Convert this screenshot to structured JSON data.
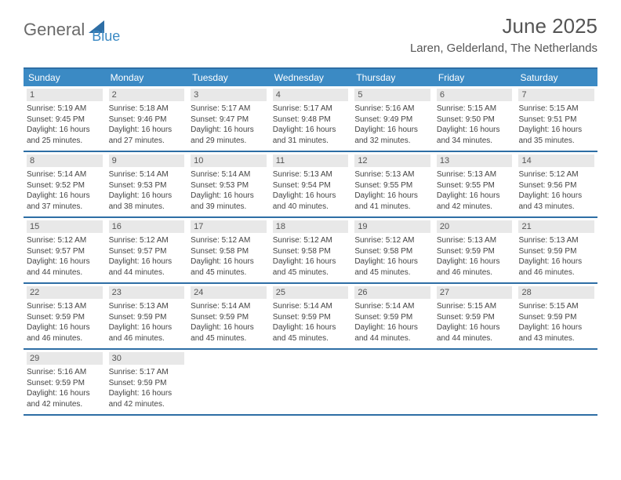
{
  "brand": {
    "text_part1": "General",
    "text_part2": "Blue",
    "color_gray": "#6a6a6a",
    "color_blue": "#3b8ac4",
    "logo_fill": "#2e6ea5"
  },
  "header": {
    "month_title": "June 2025",
    "location": "Laren, Gelderland, The Netherlands"
  },
  "colors": {
    "header_bg": "#3b8ac4",
    "border": "#2e6ea5",
    "daynum_bg": "#e8e8e8",
    "text": "#444444",
    "background": "#ffffff"
  },
  "calendar": {
    "day_names": [
      "Sunday",
      "Monday",
      "Tuesday",
      "Wednesday",
      "Thursday",
      "Friday",
      "Saturday"
    ],
    "weeks": [
      [
        {
          "num": "1",
          "sunrise": "Sunrise: 5:19 AM",
          "sunset": "Sunset: 9:45 PM",
          "daylight": "Daylight: 16 hours and 25 minutes."
        },
        {
          "num": "2",
          "sunrise": "Sunrise: 5:18 AM",
          "sunset": "Sunset: 9:46 PM",
          "daylight": "Daylight: 16 hours and 27 minutes."
        },
        {
          "num": "3",
          "sunrise": "Sunrise: 5:17 AM",
          "sunset": "Sunset: 9:47 PM",
          "daylight": "Daylight: 16 hours and 29 minutes."
        },
        {
          "num": "4",
          "sunrise": "Sunrise: 5:17 AM",
          "sunset": "Sunset: 9:48 PM",
          "daylight": "Daylight: 16 hours and 31 minutes."
        },
        {
          "num": "5",
          "sunrise": "Sunrise: 5:16 AM",
          "sunset": "Sunset: 9:49 PM",
          "daylight": "Daylight: 16 hours and 32 minutes."
        },
        {
          "num": "6",
          "sunrise": "Sunrise: 5:15 AM",
          "sunset": "Sunset: 9:50 PM",
          "daylight": "Daylight: 16 hours and 34 minutes."
        },
        {
          "num": "7",
          "sunrise": "Sunrise: 5:15 AM",
          "sunset": "Sunset: 9:51 PM",
          "daylight": "Daylight: 16 hours and 35 minutes."
        }
      ],
      [
        {
          "num": "8",
          "sunrise": "Sunrise: 5:14 AM",
          "sunset": "Sunset: 9:52 PM",
          "daylight": "Daylight: 16 hours and 37 minutes."
        },
        {
          "num": "9",
          "sunrise": "Sunrise: 5:14 AM",
          "sunset": "Sunset: 9:53 PM",
          "daylight": "Daylight: 16 hours and 38 minutes."
        },
        {
          "num": "10",
          "sunrise": "Sunrise: 5:14 AM",
          "sunset": "Sunset: 9:53 PM",
          "daylight": "Daylight: 16 hours and 39 minutes."
        },
        {
          "num": "11",
          "sunrise": "Sunrise: 5:13 AM",
          "sunset": "Sunset: 9:54 PM",
          "daylight": "Daylight: 16 hours and 40 minutes."
        },
        {
          "num": "12",
          "sunrise": "Sunrise: 5:13 AM",
          "sunset": "Sunset: 9:55 PM",
          "daylight": "Daylight: 16 hours and 41 minutes."
        },
        {
          "num": "13",
          "sunrise": "Sunrise: 5:13 AM",
          "sunset": "Sunset: 9:55 PM",
          "daylight": "Daylight: 16 hours and 42 minutes."
        },
        {
          "num": "14",
          "sunrise": "Sunrise: 5:12 AM",
          "sunset": "Sunset: 9:56 PM",
          "daylight": "Daylight: 16 hours and 43 minutes."
        }
      ],
      [
        {
          "num": "15",
          "sunrise": "Sunrise: 5:12 AM",
          "sunset": "Sunset: 9:57 PM",
          "daylight": "Daylight: 16 hours and 44 minutes."
        },
        {
          "num": "16",
          "sunrise": "Sunrise: 5:12 AM",
          "sunset": "Sunset: 9:57 PM",
          "daylight": "Daylight: 16 hours and 44 minutes."
        },
        {
          "num": "17",
          "sunrise": "Sunrise: 5:12 AM",
          "sunset": "Sunset: 9:58 PM",
          "daylight": "Daylight: 16 hours and 45 minutes."
        },
        {
          "num": "18",
          "sunrise": "Sunrise: 5:12 AM",
          "sunset": "Sunset: 9:58 PM",
          "daylight": "Daylight: 16 hours and 45 minutes."
        },
        {
          "num": "19",
          "sunrise": "Sunrise: 5:12 AM",
          "sunset": "Sunset: 9:58 PM",
          "daylight": "Daylight: 16 hours and 45 minutes."
        },
        {
          "num": "20",
          "sunrise": "Sunrise: 5:13 AM",
          "sunset": "Sunset: 9:59 PM",
          "daylight": "Daylight: 16 hours and 46 minutes."
        },
        {
          "num": "21",
          "sunrise": "Sunrise: 5:13 AM",
          "sunset": "Sunset: 9:59 PM",
          "daylight": "Daylight: 16 hours and 46 minutes."
        }
      ],
      [
        {
          "num": "22",
          "sunrise": "Sunrise: 5:13 AM",
          "sunset": "Sunset: 9:59 PM",
          "daylight": "Daylight: 16 hours and 46 minutes."
        },
        {
          "num": "23",
          "sunrise": "Sunrise: 5:13 AM",
          "sunset": "Sunset: 9:59 PM",
          "daylight": "Daylight: 16 hours and 46 minutes."
        },
        {
          "num": "24",
          "sunrise": "Sunrise: 5:14 AM",
          "sunset": "Sunset: 9:59 PM",
          "daylight": "Daylight: 16 hours and 45 minutes."
        },
        {
          "num": "25",
          "sunrise": "Sunrise: 5:14 AM",
          "sunset": "Sunset: 9:59 PM",
          "daylight": "Daylight: 16 hours and 45 minutes."
        },
        {
          "num": "26",
          "sunrise": "Sunrise: 5:14 AM",
          "sunset": "Sunset: 9:59 PM",
          "daylight": "Daylight: 16 hours and 44 minutes."
        },
        {
          "num": "27",
          "sunrise": "Sunrise: 5:15 AM",
          "sunset": "Sunset: 9:59 PM",
          "daylight": "Daylight: 16 hours and 44 minutes."
        },
        {
          "num": "28",
          "sunrise": "Sunrise: 5:15 AM",
          "sunset": "Sunset: 9:59 PM",
          "daylight": "Daylight: 16 hours and 43 minutes."
        }
      ],
      [
        {
          "num": "29",
          "sunrise": "Sunrise: 5:16 AM",
          "sunset": "Sunset: 9:59 PM",
          "daylight": "Daylight: 16 hours and 42 minutes."
        },
        {
          "num": "30",
          "sunrise": "Sunrise: 5:17 AM",
          "sunset": "Sunset: 9:59 PM",
          "daylight": "Daylight: 16 hours and 42 minutes."
        },
        null,
        null,
        null,
        null,
        null
      ]
    ]
  }
}
